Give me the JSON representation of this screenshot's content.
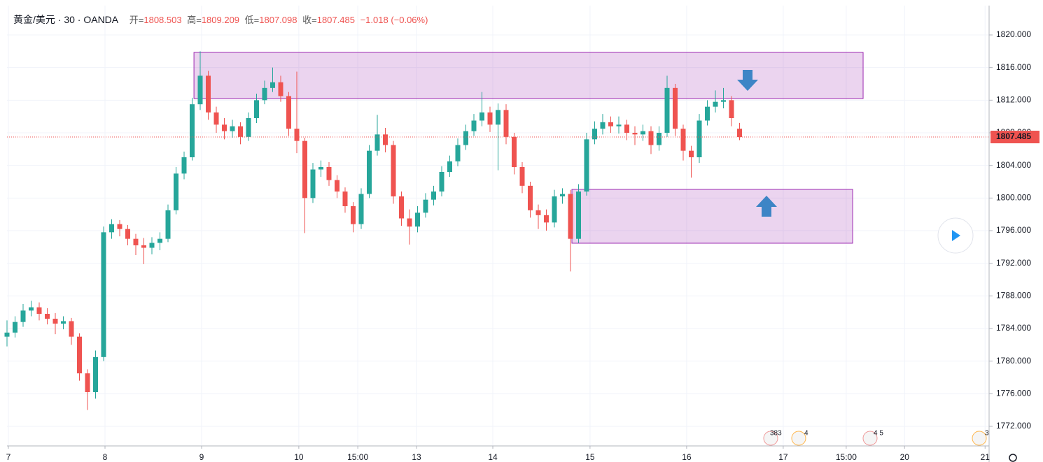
{
  "chart_data": {
    "type": "candlestick",
    "title": "黄金/美元 · 30 · OANDA",
    "header_items": [
      {
        "name": "开=",
        "value": 1808.503
      },
      {
        "name": "高=",
        "value": 1809.209
      },
      {
        "name": "低=",
        "value": 1807.098
      },
      {
        "name": "收=",
        "value": 1807.485
      }
    ],
    "change_text": "−1.018 (−0.06%)",
    "up_color": "#26a69a",
    "down_color": "#ef5350",
    "zone_color": "#9c27b0",
    "grid": true,
    "xlim": [
      0,
      488
    ],
    "xticks": [
      {
        "value": 0.7,
        "label": "7"
      },
      {
        "value": 48.7,
        "label": "8"
      },
      {
        "value": 96.7,
        "label": "9"
      },
      {
        "value": 145,
        "label": "10"
      },
      {
        "value": 174.3,
        "label": "15:00"
      },
      {
        "value": 203.5,
        "label": "13"
      },
      {
        "value": 241.4,
        "label": "14"
      },
      {
        "value": 289.7,
        "label": "15"
      },
      {
        "value": 337.7,
        "label": "16"
      },
      {
        "value": 385.7,
        "label": "17"
      },
      {
        "value": 417,
        "label": "15:00"
      },
      {
        "value": 446,
        "label": "20"
      },
      {
        "value": 486,
        "label": "21"
      }
    ],
    "ylim": [
      1769.6,
      1823.6
    ],
    "yticks": [
      {
        "value": 1772,
        "label": "1772.000"
      },
      {
        "value": 1776,
        "label": "1776.000"
      },
      {
        "value": 1780,
        "label": "1780.000"
      },
      {
        "value": 1784,
        "label": "1784.000"
      },
      {
        "value": 1788,
        "label": "1788.000"
      },
      {
        "value": 1792,
        "label": "1792.000"
      },
      {
        "value": 1796,
        "label": "1796.000"
      },
      {
        "value": 1800,
        "label": "1800.000"
      },
      {
        "value": 1804,
        "label": "1804.000"
      },
      {
        "value": 1808,
        "label": "1808.000"
      },
      {
        "value": 1812,
        "label": "1812.000"
      },
      {
        "value": 1816,
        "label": "1816.000"
      },
      {
        "value": 1820,
        "label": "1820.000"
      }
    ],
    "last_price": 1807.485,
    "x": [
      0,
      4,
      8,
      12,
      16,
      20,
      24,
      28,
      32,
      36,
      40,
      44,
      48,
      52,
      56,
      60,
      64,
      68,
      72,
      76,
      80,
      84,
      88,
      92,
      96,
      100,
      104,
      108,
      112,
      116,
      120,
      124,
      128,
      132,
      136,
      140,
      144,
      148,
      152,
      156,
      160,
      164,
      168,
      172,
      176,
      180,
      184,
      188,
      192,
      196,
      200,
      204,
      208,
      212,
      216,
      220,
      224,
      228,
      232,
      236,
      240,
      244,
      248,
      252,
      256,
      260,
      264,
      268,
      272,
      276,
      280,
      284,
      288,
      292,
      296,
      300,
      304,
      308,
      312,
      316,
      320,
      324,
      328,
      332,
      336,
      340,
      344,
      348,
      352,
      356,
      360,
      364
    ],
    "open": [
      1783.0,
      1783.5,
      1784.8,
      1786.2,
      1786.6,
      1785.8,
      1785.2,
      1784.6,
      1784.9,
      1783.0,
      1778.5,
      1776.2,
      1780.5,
      1795.8,
      1796.8,
      1796.2,
      1795.0,
      1794.2,
      1793.9,
      1794.5,
      1795.0,
      1798.5,
      1803.0,
      1805.0,
      1811.5,
      1815.0,
      1810.5,
      1809.0,
      1808.2,
      1808.8,
      1807.5,
      1809.8,
      1812.0,
      1813.5,
      1814.2,
      1812.5,
      1808.5,
      1807.0,
      1800.0,
      1803.5,
      1803.8,
      1802.2,
      1800.8,
      1799.0,
      1796.8,
      1800.5,
      1805.8,
      1807.8,
      1806.5,
      1800.2,
      1797.5,
      1796.5,
      1798.2,
      1799.8,
      1800.8,
      1803.2,
      1804.5,
      1806.5,
      1808.2,
      1809.5,
      1810.5,
      1809.0,
      1810.8,
      1807.5,
      1803.8,
      1801.5,
      1798.5,
      1797.9,
      1797.0,
      1800.2,
      1800.5,
      1795.0,
      1800.8,
      1807.2,
      1808.5,
      1809.3,
      1808.8,
      1809.0,
      1808.0,
      1807.8,
      1808.2,
      1806.5,
      1808.0,
      1813.5,
      1808.5,
      1805.8,
      1805.0,
      1809.5,
      1811.2,
      1811.8,
      1812.0,
      1808.503
    ],
    "high": [
      1785.0,
      1785.5,
      1787.0,
      1787.4,
      1787.2,
      1786.5,
      1785.9,
      1785.5,
      1785.3,
      1783.4,
      1779.0,
      1781.3,
      1796.5,
      1797.4,
      1797.3,
      1796.7,
      1795.6,
      1795.1,
      1795.2,
      1795.8,
      1799.2,
      1803.8,
      1805.7,
      1812.3,
      1818.0,
      1815.6,
      1811.2,
      1809.8,
      1809.6,
      1809.3,
      1810.5,
      1812.8,
      1814.4,
      1816.0,
      1815.0,
      1813.0,
      1815.5,
      1807.4,
      1804.3,
      1804.6,
      1804.4,
      1802.8,
      1801.3,
      1799.5,
      1801.2,
      1806.5,
      1810.2,
      1808.6,
      1807.0,
      1800.8,
      1798.6,
      1799.0,
      1800.6,
      1801.5,
      1803.9,
      1805.2,
      1807.3,
      1809.0,
      1810.3,
      1813.0,
      1811.2,
      1811.6,
      1811.5,
      1808.0,
      1804.4,
      1802.0,
      1799.2,
      1798.6,
      1801.0,
      1801.2,
      1801.0,
      1801.7,
      1808.0,
      1809.4,
      1810.3,
      1810.0,
      1810.0,
      1809.6,
      1808.8,
      1809.0,
      1808.8,
      1808.8,
      1815.0,
      1814.0,
      1809.0,
      1806.4,
      1810.3,
      1812.0,
      1813.2,
      1813.5,
      1812.5,
      1809.209
    ],
    "low": [
      1781.8,
      1782.9,
      1784.2,
      1785.5,
      1785.0,
      1784.5,
      1783.3,
      1783.9,
      1782.0,
      1777.6,
      1774.0,
      1775.4,
      1780.0,
      1795.0,
      1795.3,
      1794.2,
      1793.0,
      1791.9,
      1793.1,
      1793.6,
      1794.6,
      1798.0,
      1802.3,
      1804.6,
      1810.8,
      1809.6,
      1808.0,
      1807.2,
      1807.4,
      1806.6,
      1807.0,
      1809.2,
      1811.5,
      1813.0,
      1811.8,
      1807.6,
      1805.5,
      1795.7,
      1799.4,
      1802.6,
      1801.5,
      1800.0,
      1798.2,
      1795.8,
      1796.2,
      1800.0,
      1805.2,
      1805.6,
      1799.3,
      1796.6,
      1794.3,
      1795.8,
      1797.6,
      1799.1,
      1800.2,
      1802.6,
      1803.9,
      1805.9,
      1807.6,
      1808.8,
      1808.1,
      1803.4,
      1806.6,
      1802.9,
      1800.6,
      1797.6,
      1796.2,
      1796.0,
      1796.4,
      1799.3,
      1791.0,
      1794.5,
      1800.3,
      1806.6,
      1807.8,
      1808.0,
      1807.9,
      1807.1,
      1806.5,
      1807.0,
      1805.4,
      1805.8,
      1807.5,
      1807.6,
      1804.6,
      1802.5,
      1804.3,
      1808.9,
      1810.5,
      1811.0,
      1808.8,
      1807.098
    ],
    "close": [
      1783.5,
      1784.8,
      1786.2,
      1786.6,
      1785.8,
      1785.2,
      1784.6,
      1784.9,
      1783.0,
      1778.5,
      1776.2,
      1780.5,
      1795.8,
      1796.8,
      1796.2,
      1795.0,
      1794.2,
      1793.9,
      1794.5,
      1795.0,
      1798.5,
      1803.0,
      1805.0,
      1811.5,
      1815.0,
      1810.5,
      1809.0,
      1808.2,
      1808.8,
      1807.5,
      1809.8,
      1812.0,
      1813.5,
      1814.2,
      1812.5,
      1808.5,
      1807.0,
      1800.0,
      1803.5,
      1803.8,
      1802.2,
      1800.8,
      1799.0,
      1796.8,
      1800.5,
      1805.8,
      1807.8,
      1806.5,
      1800.2,
      1797.5,
      1796.5,
      1798.2,
      1799.8,
      1800.8,
      1803.2,
      1804.5,
      1806.5,
      1808.2,
      1809.5,
      1810.5,
      1809.0,
      1810.8,
      1807.5,
      1803.8,
      1801.5,
      1798.5,
      1797.9,
      1797.0,
      1800.2,
      1800.5,
      1795.0,
      1800.8,
      1807.2,
      1808.5,
      1809.3,
      1808.8,
      1809.0,
      1808.0,
      1807.8,
      1808.2,
      1806.5,
      1808.0,
      1813.5,
      1808.5,
      1805.8,
      1805.0,
      1809.5,
      1811.2,
      1811.8,
      1812.0,
      1809.8,
      1807.485
    ],
    "zones": [
      {
        "x": [
          92.9,
          425.4
        ],
        "y": [
          1812.2,
          1817.86
        ]
      },
      {
        "x": [
          280.7,
          420.2
        ],
        "y": [
          1794.46,
          1801.06
        ]
      }
    ],
    "events": [
      "383",
      "4",
      "4 5",
      "3"
    ]
  }
}
